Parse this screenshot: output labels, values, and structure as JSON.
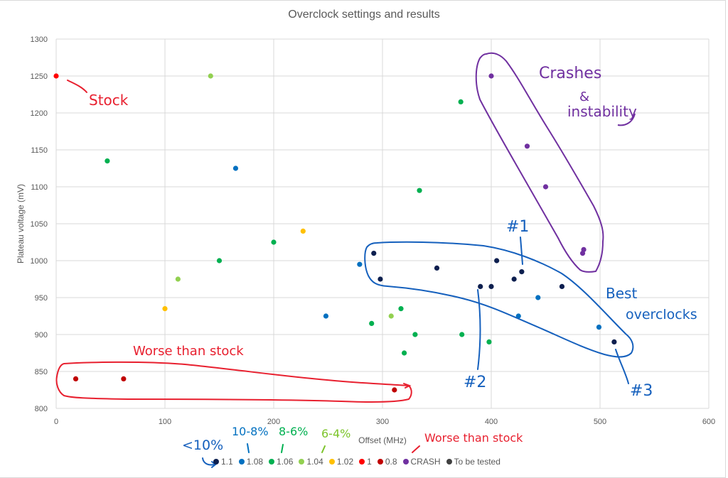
{
  "chart_data": {
    "type": "scatter",
    "title": "Overclock settings and results",
    "xlabel": "Offset (MHz)",
    "ylabel": "Plateau voltage (mV)",
    "xlim": [
      0,
      600
    ],
    "ylim": [
      800,
      1300
    ],
    "xticks": [
      0,
      100,
      200,
      300,
      400,
      500,
      600
    ],
    "yticks": [
      800,
      850,
      900,
      950,
      1000,
      1050,
      1100,
      1150,
      1200,
      1250,
      1300
    ],
    "grid": true,
    "legend_position": "bottom",
    "series": [
      {
        "name": "1.1",
        "color": "#0d1f4f",
        "points": [
          [
            292,
            1010
          ],
          [
            298,
            975
          ],
          [
            350,
            990
          ],
          [
            390,
            965
          ],
          [
            400,
            965
          ],
          [
            405,
            1000
          ],
          [
            421,
            975
          ],
          [
            428,
            985
          ],
          [
            465,
            965
          ],
          [
            513,
            890
          ]
        ]
      },
      {
        "name": "1.08",
        "color": "#0070c0",
        "points": [
          [
            165,
            1125
          ],
          [
            248,
            925
          ],
          [
            279,
            995
          ],
          [
            425,
            925
          ],
          [
            443,
            950
          ],
          [
            499,
            910
          ]
        ]
      },
      {
        "name": "1.06",
        "color": "#00b050",
        "points": [
          [
            47,
            1135
          ],
          [
            150,
            1000
          ],
          [
            200,
            1025
          ],
          [
            290,
            915
          ],
          [
            317,
            935
          ],
          [
            320,
            875
          ],
          [
            330,
            900
          ],
          [
            334,
            1095
          ],
          [
            372,
            1215
          ],
          [
            373,
            900
          ],
          [
            398,
            890
          ]
        ]
      },
      {
        "name": "1.04",
        "color": "#92d050",
        "points": [
          [
            112,
            975
          ],
          [
            142,
            1250
          ],
          [
            308,
            925
          ]
        ]
      },
      {
        "name": "1.02",
        "color": "#ffc000",
        "points": [
          [
            100,
            935
          ],
          [
            227,
            1040
          ]
        ]
      },
      {
        "name": "1",
        "color": "#ff0000",
        "points": [
          [
            0,
            1250
          ]
        ]
      },
      {
        "name": "0.8",
        "color": "#c00000",
        "points": [
          [
            18,
            840
          ],
          [
            62,
            840
          ],
          [
            311,
            825
          ]
        ]
      },
      {
        "name": "CRASH",
        "color": "#7030a0",
        "points": [
          [
            400,
            1250
          ],
          [
            433,
            1155
          ],
          [
            450,
            1100
          ],
          [
            484,
            1010
          ],
          [
            485,
            1015
          ]
        ]
      },
      {
        "name": "To be tested",
        "color": "#404040",
        "points": []
      }
    ],
    "annotations": [
      {
        "text": "Stock",
        "color": "#e8202f"
      },
      {
        "text": "Crashes & instability",
        "color": "#7030a0"
      },
      {
        "text": "#1",
        "color": "#1560bd"
      },
      {
        "text": "#2",
        "color": "#1560bd"
      },
      {
        "text": "#3",
        "color": "#1560bd"
      },
      {
        "text": "Best overclocks",
        "color": "#1560bd"
      },
      {
        "text": "Worse than stock",
        "color": "#e8202f"
      },
      {
        "text": "<10%",
        "color": "#1560bd"
      },
      {
        "text": "10-8%",
        "color": "#0070c0"
      },
      {
        "text": "8-6%",
        "color": "#00b050"
      },
      {
        "text": "6-4%",
        "color": "#7cc42a"
      },
      {
        "text": "Worse than stock",
        "color": "#e8202f"
      }
    ]
  },
  "annotations_text": {
    "stock": "Stock",
    "crashes": "Crashes",
    "amp": "&",
    "instability": "instability",
    "n1": "#1",
    "n2": "#2",
    "n3": "#3",
    "best": "Best",
    "overclocks": "overclocks",
    "worse": "Worse than stock",
    "lt10": "<10%",
    "r108": "10-8%",
    "r86": "8-6%",
    "r64": "6-4%",
    "worse_legend": "Worse than stock"
  },
  "legend": [
    {
      "label": "1.1",
      "color": "#0d1f4f"
    },
    {
      "label": "1.08",
      "color": "#0070c0"
    },
    {
      "label": "1.06",
      "color": "#00b050"
    },
    {
      "label": "1.04",
      "color": "#92d050"
    },
    {
      "label": "1.02",
      "color": "#ffc000"
    },
    {
      "label": "1",
      "color": "#ff0000"
    },
    {
      "label": "0.8",
      "color": "#c00000"
    },
    {
      "label": "CRASH",
      "color": "#7030a0"
    },
    {
      "label": "To be tested",
      "color": "#404040"
    }
  ]
}
